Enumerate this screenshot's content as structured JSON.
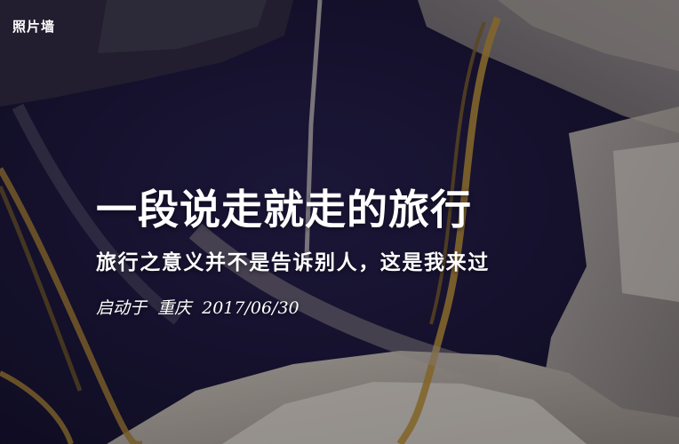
{
  "header": {
    "brand": "照片墙"
  },
  "post": {
    "title": "一段说走就走的旅行",
    "subtitle": "旅行之意义并不是告诉别人，这是我来过",
    "meta": {
      "prefix": "启动于",
      "location": "重庆",
      "date": "2017/06/30"
    }
  },
  "colors": {
    "text": "#ffffff",
    "background": "#15122b"
  }
}
